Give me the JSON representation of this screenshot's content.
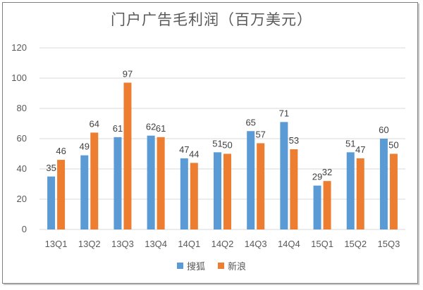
{
  "chart_data": {
    "type": "bar",
    "title": "门户广告毛利润（百万美元）",
    "categories": [
      "13Q1",
      "13Q2",
      "13Q3",
      "13Q4",
      "14Q1",
      "14Q2",
      "14Q3",
      "14Q4",
      "15Q1",
      "15Q2",
      "15Q3"
    ],
    "series": [
      {
        "name": "搜狐",
        "color": "#5b9bd5",
        "values": [
          35,
          49,
          61,
          62,
          47,
          51,
          65,
          71,
          29,
          51,
          60
        ]
      },
      {
        "name": "新浪",
        "color": "#ed7d31",
        "values": [
          46,
          64,
          97,
          61,
          44,
          50,
          57,
          53,
          32,
          47,
          50
        ]
      }
    ],
    "ylim": [
      0,
      120
    ],
    "yticks": [
      0,
      20,
      40,
      60,
      80,
      100,
      120
    ],
    "grid": true,
    "legend_position": "bottom"
  }
}
